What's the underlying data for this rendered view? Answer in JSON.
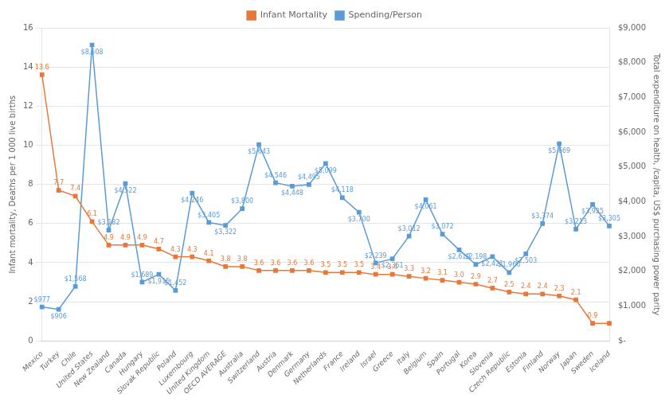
{
  "chart_data": {
    "type": "line",
    "categories": [
      "Mexico",
      "Turkey",
      "Chile",
      "United States",
      "New Zealand",
      "Canada",
      "Hungary",
      "Slovak Republic",
      "Poland",
      "Luxembourg",
      "United Kingdom",
      "OECD AVERAGE",
      "Australia",
      "Switzerland",
      "Austria",
      "Denmark",
      "Germany",
      "Netherlands",
      "France",
      "Ireland",
      "Israel",
      "Greece",
      "Italy",
      "Belgium",
      "Spain",
      "Portugal",
      "Korea",
      "Slovenia",
      "Czech Republic",
      "Estonia",
      "Finland",
      "Norway",
      "Japan",
      "Sweden",
      "Iceland"
    ],
    "series": [
      {
        "name": "Infant Mortality",
        "color": "#E8773A",
        "marker": "square",
        "values": [
          13.6,
          7.7,
          7.4,
          6.1,
          4.9,
          4.9,
          4.9,
          4.7,
          4.3,
          4.3,
          4.1,
          3.8,
          3.8,
          3.6,
          3.6,
          3.6,
          3.6,
          3.5,
          3.5,
          3.5,
          3.4,
          3.4,
          3.3,
          3.2,
          3.1,
          3.0,
          2.9,
          2.7,
          2.5,
          2.4,
          2.4,
          2.3,
          2.1,
          0.9,
          0.9
        ],
        "value_labels": [
          "13.6",
          "7.7",
          "7.4",
          "6.1",
          "4.9",
          "4.9",
          "4.9",
          "4.7",
          "4.3",
          "4.3",
          "4.1",
          "3.8",
          "3.8",
          "3.6",
          "3.6",
          "3.6",
          "3.6",
          "3.5",
          "3.5",
          "3.5",
          "3.4",
          "3.4",
          "3.3",
          "3.2",
          "3.1",
          "3.0",
          "2.9",
          "2.7",
          "2.5",
          "2.4",
          "2.4",
          "2.3",
          "2.1",
          "0.9",
          null
        ]
      },
      {
        "name": "Spending/Person",
        "color": "#5B9BD5",
        "marker": "square",
        "axis": "y2",
        "values": [
          977,
          906,
          1568,
          8508,
          3182,
          4522,
          1689,
          1915,
          1452,
          4246,
          3405,
          3322,
          3800,
          5643,
          4546,
          4448,
          4495,
          5099,
          4118,
          3700,
          2239,
          2361,
          3012,
          4061,
          3072,
          2619,
          2198,
          2421,
          1966,
          2503,
          3374,
          5669,
          3213,
          3925,
          3305
        ],
        "value_labels": [
          "$977",
          "$906",
          "$1,568",
          "$8,508",
          "$3,182",
          "$4,522",
          "$1,689",
          "$1,915",
          "$1,452",
          "$4,246",
          "$3,405",
          "$3,322",
          "$3,800",
          "$5,643",
          "$4,546",
          "$4,448",
          "$4,495",
          "$5,099",
          "$4,118",
          "$3,700",
          "$2,239",
          "$2,361",
          "$3,012",
          "$4,061",
          "$3,072",
          "$2,619",
          "$2,198",
          "$2,421",
          "$1,966",
          "$2,503",
          "$3,374",
          "$5,669",
          "$3,213",
          "$3,925",
          "$3,305"
        ]
      }
    ],
    "ylabel": "Infant mortality, Deaths per 1 000 live births",
    "y2label": "Total expenditure on health, /capita, US$ purchasing power parity",
    "ylim": [
      0,
      16
    ],
    "yticks": [
      0,
      2,
      4,
      6,
      8,
      10,
      12,
      14,
      16
    ],
    "y2lim": [
      0,
      9000
    ],
    "y2ticks": [
      {
        "value": 0,
        "label": "$-"
      },
      {
        "value": 1000,
        "label": "$1,000"
      },
      {
        "value": 2000,
        "label": "$2,000"
      },
      {
        "value": 3000,
        "label": "$3,000"
      },
      {
        "value": 4000,
        "label": "$4,000"
      },
      {
        "value": 5000,
        "label": "$5,000"
      },
      {
        "value": 6000,
        "label": "$6,000"
      },
      {
        "value": 7000,
        "label": "$7,000"
      },
      {
        "value": 8000,
        "label": "$8,000"
      },
      {
        "value": 9000,
        "label": "$9,000"
      }
    ],
    "grid": true,
    "legend": "top",
    "data_labels": true
  }
}
